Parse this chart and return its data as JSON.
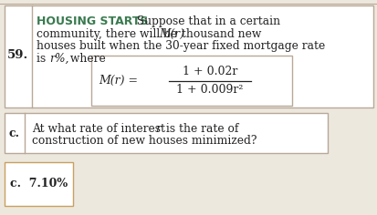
{
  "problem_number": "59.",
  "title": "HOUSING STARTS",
  "line1_rest": "  Suppose that in a certain",
  "line2": "community, there will be M(r) thousand new",
  "line3": "houses built when the 30-year fixed mortgage rate",
  "line4": "is r%, where",
  "formula_lhs": "M(r) =",
  "formula_num": "1 + 0.02r",
  "formula_den": "1 + 0.009r²",
  "part_c_label": "c.",
  "part_c_line1": "At what rate of interest r is the rate of",
  "part_c_line2": "construction of new houses minimized?",
  "ans_label": "c.",
  "ans_value": "7.10%",
  "bg_color": "#ede8de",
  "white": "#ffffff",
  "border_color": "#b8a898",
  "title_color": "#3a7a50",
  "text_color": "#222222",
  "ans_border_color": "#c8a060"
}
